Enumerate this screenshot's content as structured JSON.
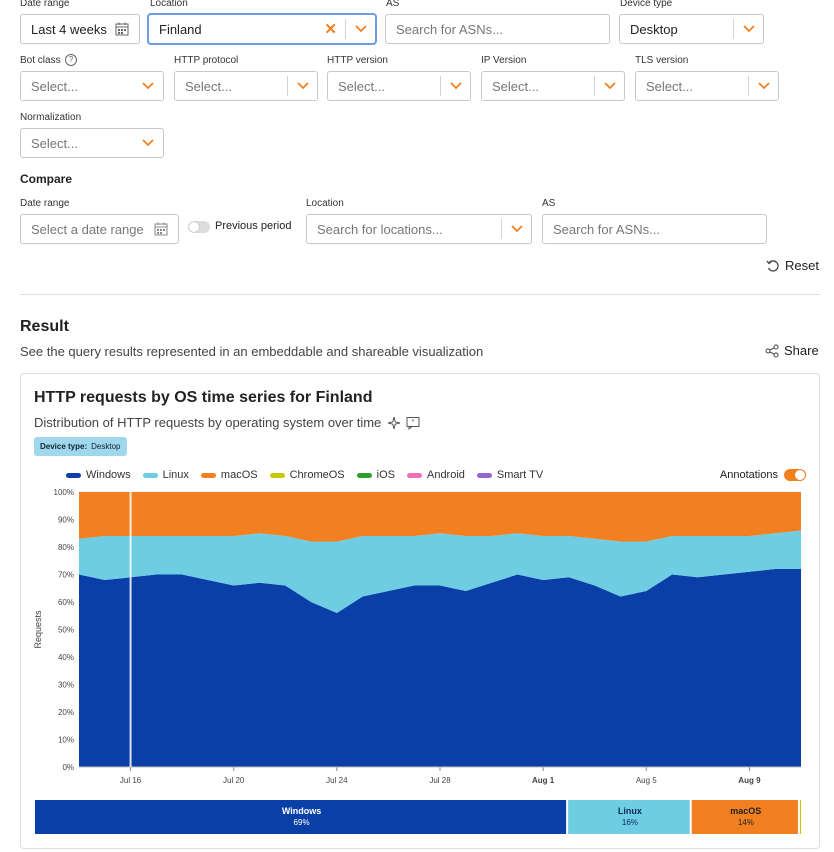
{
  "filters": {
    "date_range": {
      "label": "Date range",
      "value": "Last 4 weeks"
    },
    "location": {
      "label": "Location",
      "value": "Finland"
    },
    "as": {
      "label": "AS",
      "placeholder": "Search for ASNs..."
    },
    "device_type": {
      "label": "Device type",
      "value": "Desktop"
    },
    "bot_class": {
      "label": "Bot class",
      "placeholder": "Select..."
    },
    "http_protocol": {
      "label": "HTTP protocol",
      "placeholder": "Select..."
    },
    "http_version": {
      "label": "HTTP version",
      "placeholder": "Select..."
    },
    "ip_version": {
      "label": "IP Version",
      "placeholder": "Select..."
    },
    "tls_version": {
      "label": "TLS version",
      "placeholder": "Select..."
    },
    "normalization": {
      "label": "Normalization",
      "placeholder": "Select..."
    }
  },
  "compare": {
    "title": "Compare",
    "date_range": {
      "label": "Date range",
      "placeholder": "Select a date range"
    },
    "previous_period": "Previous period",
    "location": {
      "label": "Location",
      "placeholder": "Search for locations..."
    },
    "as": {
      "label": "AS",
      "placeholder": "Search for ASNs..."
    },
    "reset": "Reset"
  },
  "result": {
    "title": "Result",
    "description": "See the query results represented in an embeddable and shareable visualization",
    "share": "Share"
  },
  "chart_card": {
    "title": "HTTP requests by OS time series for Finland",
    "subtitle": "Distribution of HTTP requests by operating system over time",
    "tag_key": "Device type:",
    "tag_value": "Desktop",
    "annotations_label": "Annotations",
    "annotations_on": true
  },
  "chart_data": {
    "type": "area",
    "stacked": true,
    "ylabel": "Requests",
    "y_ticks": [
      "0%",
      "10%",
      "20%",
      "30%",
      "40%",
      "50%",
      "60%",
      "70%",
      "80%",
      "90%",
      "100%"
    ],
    "ylim": [
      0,
      100
    ],
    "x_ticks": [
      "Jul 16",
      "Jul 20",
      "Jul 24",
      "Jul 28",
      "Aug 1",
      "Aug 5",
      "Aug 9"
    ],
    "x_ticks_bold": [
      "Aug 1",
      "Aug 9"
    ],
    "x": [
      "Jul 14",
      "Jul 15",
      "Jul 16",
      "Jul 17",
      "Jul 18",
      "Jul 19",
      "Jul 20",
      "Jul 21",
      "Jul 22",
      "Jul 23",
      "Jul 24",
      "Jul 25",
      "Jul 26",
      "Jul 27",
      "Jul 28",
      "Jul 29",
      "Jul 30",
      "Jul 31",
      "Aug 1",
      "Aug 2",
      "Aug 3",
      "Aug 4",
      "Aug 5",
      "Aug 6",
      "Aug 7",
      "Aug 8",
      "Aug 9",
      "Aug 10",
      "Aug 11"
    ],
    "series": [
      {
        "name": "Windows",
        "color": "#0a3fa8",
        "values": [
          70,
          68,
          69,
          70,
          70,
          68,
          66,
          67,
          66,
          60,
          56,
          62,
          64,
          66,
          66,
          64,
          67,
          70,
          68,
          69,
          66,
          62,
          64,
          70,
          69,
          70,
          71,
          72,
          72
        ]
      },
      {
        "name": "Linux",
        "color": "#6ecce3",
        "values": [
          13,
          16,
          15,
          14,
          14,
          16,
          18,
          18,
          18,
          22,
          26,
          22,
          20,
          18,
          19,
          20,
          17,
          15,
          16,
          15,
          17,
          20,
          18,
          14,
          15,
          14,
          13,
          13,
          14
        ]
      },
      {
        "name": "macOS",
        "color": "#f38020",
        "values": [
          17,
          16,
          16,
          16,
          16,
          16,
          16,
          15,
          16,
          18,
          18,
          16,
          16,
          16,
          15,
          16,
          16,
          15,
          16,
          16,
          17,
          18,
          18,
          16,
          16,
          16,
          16,
          15,
          14
        ]
      },
      {
        "name": "ChromeOS",
        "color": "#c8c800",
        "values": [
          0,
          0,
          0,
          0,
          0,
          0,
          0,
          0,
          0,
          0,
          0,
          0,
          0,
          0,
          0,
          0,
          0,
          0,
          0,
          0,
          0,
          0,
          0,
          0,
          0,
          0,
          0,
          0,
          0
        ]
      },
      {
        "name": "iOS",
        "color": "#2ca02c",
        "values": [
          0,
          0,
          0,
          0,
          0,
          0,
          0,
          0,
          0,
          0,
          0,
          0,
          0,
          0,
          0,
          0,
          0,
          0,
          0,
          0,
          0,
          0,
          0,
          0,
          0,
          0,
          0,
          0,
          0
        ]
      },
      {
        "name": "Android",
        "color": "#ee6fb8",
        "values": [
          0,
          0,
          0,
          0,
          0,
          0,
          0,
          0,
          0,
          0,
          0,
          0,
          0,
          0,
          0,
          0,
          0,
          0,
          0,
          0,
          0,
          0,
          0,
          0,
          0,
          0,
          0,
          0,
          0
        ]
      },
      {
        "name": "Smart TV",
        "color": "#9467cf",
        "values": [
          0,
          0,
          0,
          0,
          0,
          0,
          0,
          0,
          0,
          0,
          0,
          0,
          0,
          0,
          0,
          0,
          0,
          0,
          0,
          0,
          0,
          0,
          0,
          0,
          0,
          0,
          0,
          0,
          0
        ]
      }
    ],
    "annotation_date": "Jul 16"
  },
  "share_summary": [
    {
      "name": "Windows",
      "pct": "69%",
      "value": 69,
      "color": "#0a3fa8",
      "text_color": "#ffffff"
    },
    {
      "name": "Linux",
      "pct": "16%",
      "value": 16,
      "color": "#6ecce3",
      "text_color": "#0a2a5a"
    },
    {
      "name": "macOS",
      "pct": "14%",
      "value": 14,
      "color": "#f38020",
      "text_color": "#222222"
    },
    {
      "name": "ChromeOS",
      "pct": "",
      "value": 0.4,
      "color": "#c8c800",
      "text_color": "#222222"
    }
  ]
}
